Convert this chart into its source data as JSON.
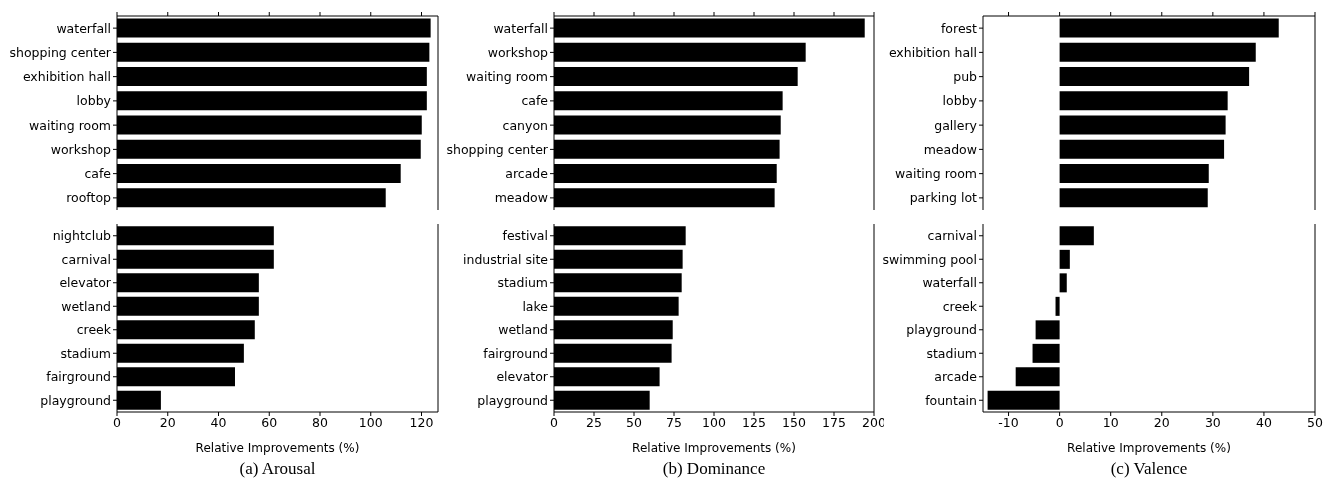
{
  "chart_data": [
    {
      "type": "bar",
      "orientation": "horizontal",
      "categories": [
        "waterfall",
        "shopping center",
        "exhibition hall",
        "lobby",
        "waiting room",
        "workshop",
        "cafe",
        "rooftop"
      ],
      "values": [
        123.6,
        123.1,
        122.1,
        122.1,
        120.1,
        119.7,
        111.8,
        105.9
      ],
      "color": "#000000",
      "xlim": [
        0,
        126.5
      ],
      "xticks": [
        0,
        20,
        40,
        60,
        80,
        100,
        120
      ],
      "tick_labels": "y"
    },
    {
      "type": "bar",
      "orientation": "horizontal",
      "categories": [
        "nightclub",
        "carnival",
        "elevator",
        "wetland",
        "creek",
        "stadium",
        "fairground",
        "playground"
      ],
      "values": [
        61.8,
        61.8,
        55.9,
        55.9,
        54.3,
        50.0,
        46.5,
        17.3
      ],
      "color": "#000000",
      "xlim": [
        0,
        126.5
      ],
      "xticks": [
        0,
        20,
        40,
        60,
        80,
        100,
        120
      ],
      "xlabel": "Relative Improvements (%)",
      "annotations": [
        "(a) Arousal"
      ]
    },
    {
      "type": "bar",
      "orientation": "horizontal",
      "categories": [
        "waterfall",
        "workshop",
        "waiting room",
        "cafe",
        "canyon",
        "shopping center",
        "arcade",
        "meadow"
      ],
      "values": [
        194.2,
        157.3,
        152.3,
        142.9,
        141.7,
        141.0,
        139.2,
        137.9
      ],
      "color": "#000000",
      "xlim": [
        0,
        200
      ],
      "xticks": [
        0,
        25,
        50,
        75,
        100,
        125,
        150,
        175,
        200
      ],
      "tick_labels": "y"
    },
    {
      "type": "bar",
      "orientation": "horizontal",
      "categories": [
        "festival",
        "industrial site",
        "stadium",
        "lake",
        "wetland",
        "fairground",
        "elevator",
        "playground"
      ],
      "values": [
        82.3,
        80.4,
        79.8,
        77.9,
        74.2,
        73.5,
        66.0,
        59.8
      ],
      "color": "#000000",
      "xlim": [
        0,
        200
      ],
      "xticks": [
        0,
        25,
        50,
        75,
        100,
        125,
        150,
        175,
        200
      ],
      "xlabel": "Relative Improvements (%)",
      "annotations": [
        "(b) Dominance"
      ]
    },
    {
      "type": "bar",
      "orientation": "horizontal",
      "categories": [
        "forest",
        "exhibition hall",
        "pub",
        "lobby",
        "gallery",
        "meadow",
        "waiting room",
        "parking lot"
      ],
      "values": [
        42.9,
        38.4,
        37.1,
        32.9,
        32.5,
        32.2,
        29.2,
        29.0
      ],
      "color": "#000000",
      "xlim": [
        -15,
        50
      ],
      "xticks": [
        -10,
        0,
        10,
        20,
        30,
        40,
        50
      ],
      "tick_labels": "y"
    },
    {
      "type": "bar",
      "orientation": "horizontal",
      "categories": [
        "carnival",
        "swimming pool",
        "waterfall",
        "creek",
        "playground",
        "stadium",
        "arcade",
        "fountain"
      ],
      "values": [
        6.7,
        2.0,
        1.4,
        -0.8,
        -4.7,
        -5.3,
        -8.6,
        -14.1
      ],
      "color": "#000000",
      "xlim": [
        -15,
        50
      ],
      "xticks": [
        -10,
        0,
        10,
        20,
        30,
        40,
        50
      ],
      "xlabel": "Relative Improvements (%)",
      "annotations": [
        "(c) Valence"
      ]
    }
  ]
}
